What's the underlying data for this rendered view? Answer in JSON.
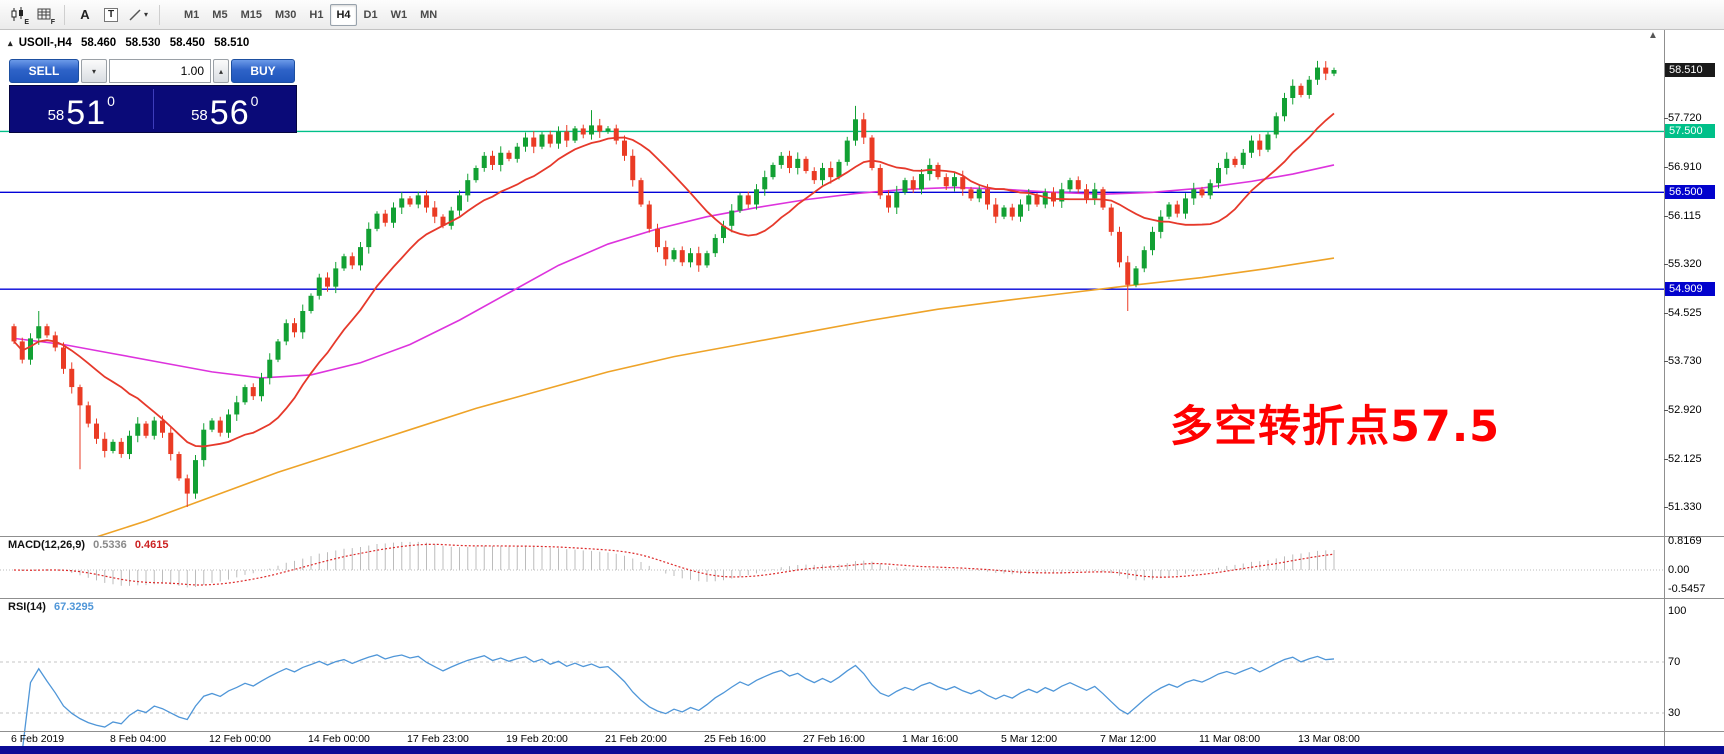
{
  "toolbar": {
    "icons": [
      {
        "sub": "E"
      },
      {
        "sub": "F"
      },
      {
        "label": "A"
      },
      {
        "label": "T"
      },
      {
        "label": ""
      }
    ],
    "timeframes": [
      "M1",
      "M5",
      "M15",
      "M30",
      "H1",
      "H4",
      "D1",
      "W1",
      "MN"
    ],
    "active_timeframe": "H4"
  },
  "chart_header": {
    "symbol": "USOIl-,H4",
    "open": "58.460",
    "high": "58.530",
    "low": "58.450",
    "close": "58.510"
  },
  "trade_panel": {
    "sell_label": "SELL",
    "buy_label": "BUY",
    "volume": "1.00",
    "sell_price": {
      "prefix": "58",
      "main": "51",
      "sup": "0"
    },
    "buy_price": {
      "prefix": "58",
      "main": "56",
      "sup": "0"
    }
  },
  "annotation": {
    "text": "多空转折点57.5",
    "color": "#ff0000"
  },
  "price_axis": {
    "ticks": [
      {
        "label": "58.510",
        "type": "current"
      },
      {
        "label": "57.720",
        "type": "tick"
      },
      {
        "label": "57.500",
        "type": "level-green"
      },
      {
        "label": "56.910",
        "type": "tick"
      },
      {
        "label": "56.500",
        "type": "level-blue"
      },
      {
        "label": "56.115",
        "type": "tick"
      },
      {
        "label": "55.320",
        "type": "tick"
      },
      {
        "label": "54.909",
        "type": "level-blue"
      },
      {
        "label": "54.525",
        "type": "tick"
      },
      {
        "label": "53.730",
        "type": "tick"
      },
      {
        "label": "52.920",
        "type": "tick"
      },
      {
        "label": "52.125",
        "type": "tick"
      },
      {
        "label": "51.330",
        "type": "tick"
      }
    ]
  },
  "indicators": {
    "macd": {
      "name": "MACD(12,26,9)",
      "value_main": "0.5336",
      "value_signal": "0.4615",
      "axis_labels": [
        "0.8169",
        "0.00",
        "-0.5457"
      ]
    },
    "rsi": {
      "name": "RSI(14)",
      "value": "67.3295",
      "axis_labels": [
        "100",
        "70",
        "30"
      ],
      "levels": [
        70,
        30
      ]
    }
  },
  "time_axis": {
    "labels": [
      {
        "text": "6 Feb 2019",
        "index": 0
      },
      {
        "text": "8 Feb 04:00",
        "index": 12
      },
      {
        "text": "12 Feb 00:00",
        "index": 24
      },
      {
        "text": "14 Feb 00:00",
        "index": 36
      },
      {
        "text": "17 Feb 23:00",
        "index": 48
      },
      {
        "text": "19 Feb 20:00",
        "index": 60
      },
      {
        "text": "21 Feb 20:00",
        "index": 72
      },
      {
        "text": "25 Feb 16:00",
        "index": 84
      },
      {
        "text": "27 Feb 16:00",
        "index": 96
      },
      {
        "text": "1 Mar 16:00",
        "index": 108
      },
      {
        "text": "5 Mar 12:00",
        "index": 120
      },
      {
        "text": "7 Mar 12:00",
        "index": 132
      },
      {
        "text": "11 Mar 08:00",
        "index": 144
      },
      {
        "text": "13 Mar 08:00",
        "index": 156
      }
    ]
  },
  "chart_data": {
    "type": "candlestick",
    "symbol": "USOIl-",
    "timeframe": "H4",
    "title": "USOIl-,H4 58.460 58.530 58.450 58.510",
    "current_price": 58.51,
    "ohlc_display": {
      "open": 58.46,
      "high": 58.53,
      "low": 58.45,
      "close": 58.51
    },
    "first_open": 54.3,
    "closes": [
      54.05,
      53.75,
      54.1,
      54.3,
      54.15,
      53.95,
      53.6,
      53.3,
      53.0,
      52.7,
      52.45,
      52.25,
      52.4,
      52.2,
      52.5,
      52.7,
      52.5,
      52.75,
      52.55,
      52.2,
      51.8,
      51.55,
      52.1,
      52.6,
      52.75,
      52.55,
      52.85,
      53.05,
      53.3,
      53.15,
      53.45,
      53.75,
      54.05,
      54.35,
      54.2,
      54.55,
      54.8,
      55.1,
      54.95,
      55.25,
      55.45,
      55.3,
      55.6,
      55.9,
      56.15,
      56.0,
      56.25,
      56.4,
      56.3,
      56.45,
      56.25,
      56.1,
      55.95,
      56.2,
      56.45,
      56.7,
      56.9,
      57.1,
      56.95,
      57.15,
      57.05,
      57.25,
      57.4,
      57.25,
      57.45,
      57.3,
      57.5,
      57.35,
      57.55,
      57.45,
      57.6,
      57.5,
      57.55,
      57.35,
      57.1,
      56.7,
      56.3,
      55.9,
      55.6,
      55.4,
      55.55,
      55.35,
      55.5,
      55.3,
      55.5,
      55.75,
      55.95,
      56.2,
      56.45,
      56.3,
      56.55,
      56.75,
      56.95,
      57.1,
      56.9,
      57.05,
      56.85,
      56.7,
      56.9,
      56.75,
      57.0,
      57.35,
      57.7,
      57.4,
      56.9,
      56.45,
      56.25,
      56.5,
      56.7,
      56.55,
      56.8,
      56.95,
      56.75,
      56.6,
      56.75,
      56.55,
      56.4,
      56.55,
      56.3,
      56.1,
      56.25,
      56.1,
      56.3,
      56.45,
      56.3,
      56.5,
      56.35,
      56.55,
      56.7,
      56.55,
      56.4,
      56.55,
      56.25,
      55.85,
      55.35,
      54.98,
      55.25,
      55.55,
      55.85,
      56.1,
      56.3,
      56.15,
      56.4,
      56.55,
      56.45,
      56.65,
      56.9,
      57.05,
      56.95,
      57.15,
      57.35,
      57.2,
      57.45,
      57.75,
      58.05,
      58.25,
      58.1,
      58.35,
      58.55,
      58.45,
      58.51
    ],
    "high_overrides": {
      "3": 54.55,
      "70": 57.85,
      "102": 57.92,
      "158": 58.66
    },
    "low_overrides": {
      "8": 51.95,
      "21": 51.33,
      "135": 54.55
    },
    "levels": [
      {
        "value": 57.5,
        "color": "#00c089",
        "label": "57.500"
      },
      {
        "value": 56.5,
        "color": "#0202d8",
        "label": "56.500"
      },
      {
        "value": 54.909,
        "color": "#0202d8",
        "label": "54.909"
      }
    ],
    "moving_averages": {
      "red_period": 14,
      "magenta_waypoints": [
        [
          0,
          54.1
        ],
        [
          6,
          54.0
        ],
        [
          12,
          53.85
        ],
        [
          18,
          53.7
        ],
        [
          24,
          53.55
        ],
        [
          30,
          53.45
        ],
        [
          36,
          53.5
        ],
        [
          42,
          53.7
        ],
        [
          48,
          54.0
        ],
        [
          54,
          54.4
        ],
        [
          60,
          54.85
        ],
        [
          66,
          55.3
        ],
        [
          72,
          55.65
        ],
        [
          78,
          55.9
        ],
        [
          84,
          56.1
        ],
        [
          90,
          56.25
        ],
        [
          96,
          56.38
        ],
        [
          102,
          56.48
        ],
        [
          108,
          56.55
        ],
        [
          114,
          56.58
        ],
        [
          120,
          56.55
        ],
        [
          126,
          56.5
        ],
        [
          132,
          56.47
        ],
        [
          138,
          56.5
        ],
        [
          144,
          56.57
        ],
        [
          150,
          56.68
        ],
        [
          155,
          56.8
        ],
        [
          160,
          56.95
        ]
      ],
      "orange_waypoints": [
        [
          8,
          50.75
        ],
        [
          16,
          51.1
        ],
        [
          24,
          51.5
        ],
        [
          32,
          51.9
        ],
        [
          40,
          52.25
        ],
        [
          48,
          52.6
        ],
        [
          56,
          52.95
        ],
        [
          64,
          53.25
        ],
        [
          72,
          53.55
        ],
        [
          80,
          53.8
        ],
        [
          88,
          54.0
        ],
        [
          96,
          54.2
        ],
        [
          104,
          54.4
        ],
        [
          112,
          54.58
        ],
        [
          120,
          54.72
        ],
        [
          128,
          54.85
        ],
        [
          136,
          54.98
        ],
        [
          144,
          55.1
        ],
        [
          152,
          55.25
        ],
        [
          160,
          55.42
        ]
      ]
    },
    "colors": {
      "up": "#12a033",
      "down": "#ea3b24",
      "ma_red": "#e6392b",
      "ma_magenta": "#dd33dd",
      "ma_orange": "#eea328",
      "macd_hist": "#bcbcbc",
      "macd_signal": "#dd2a2a",
      "rsi_line": "#4f96d8"
    }
  }
}
